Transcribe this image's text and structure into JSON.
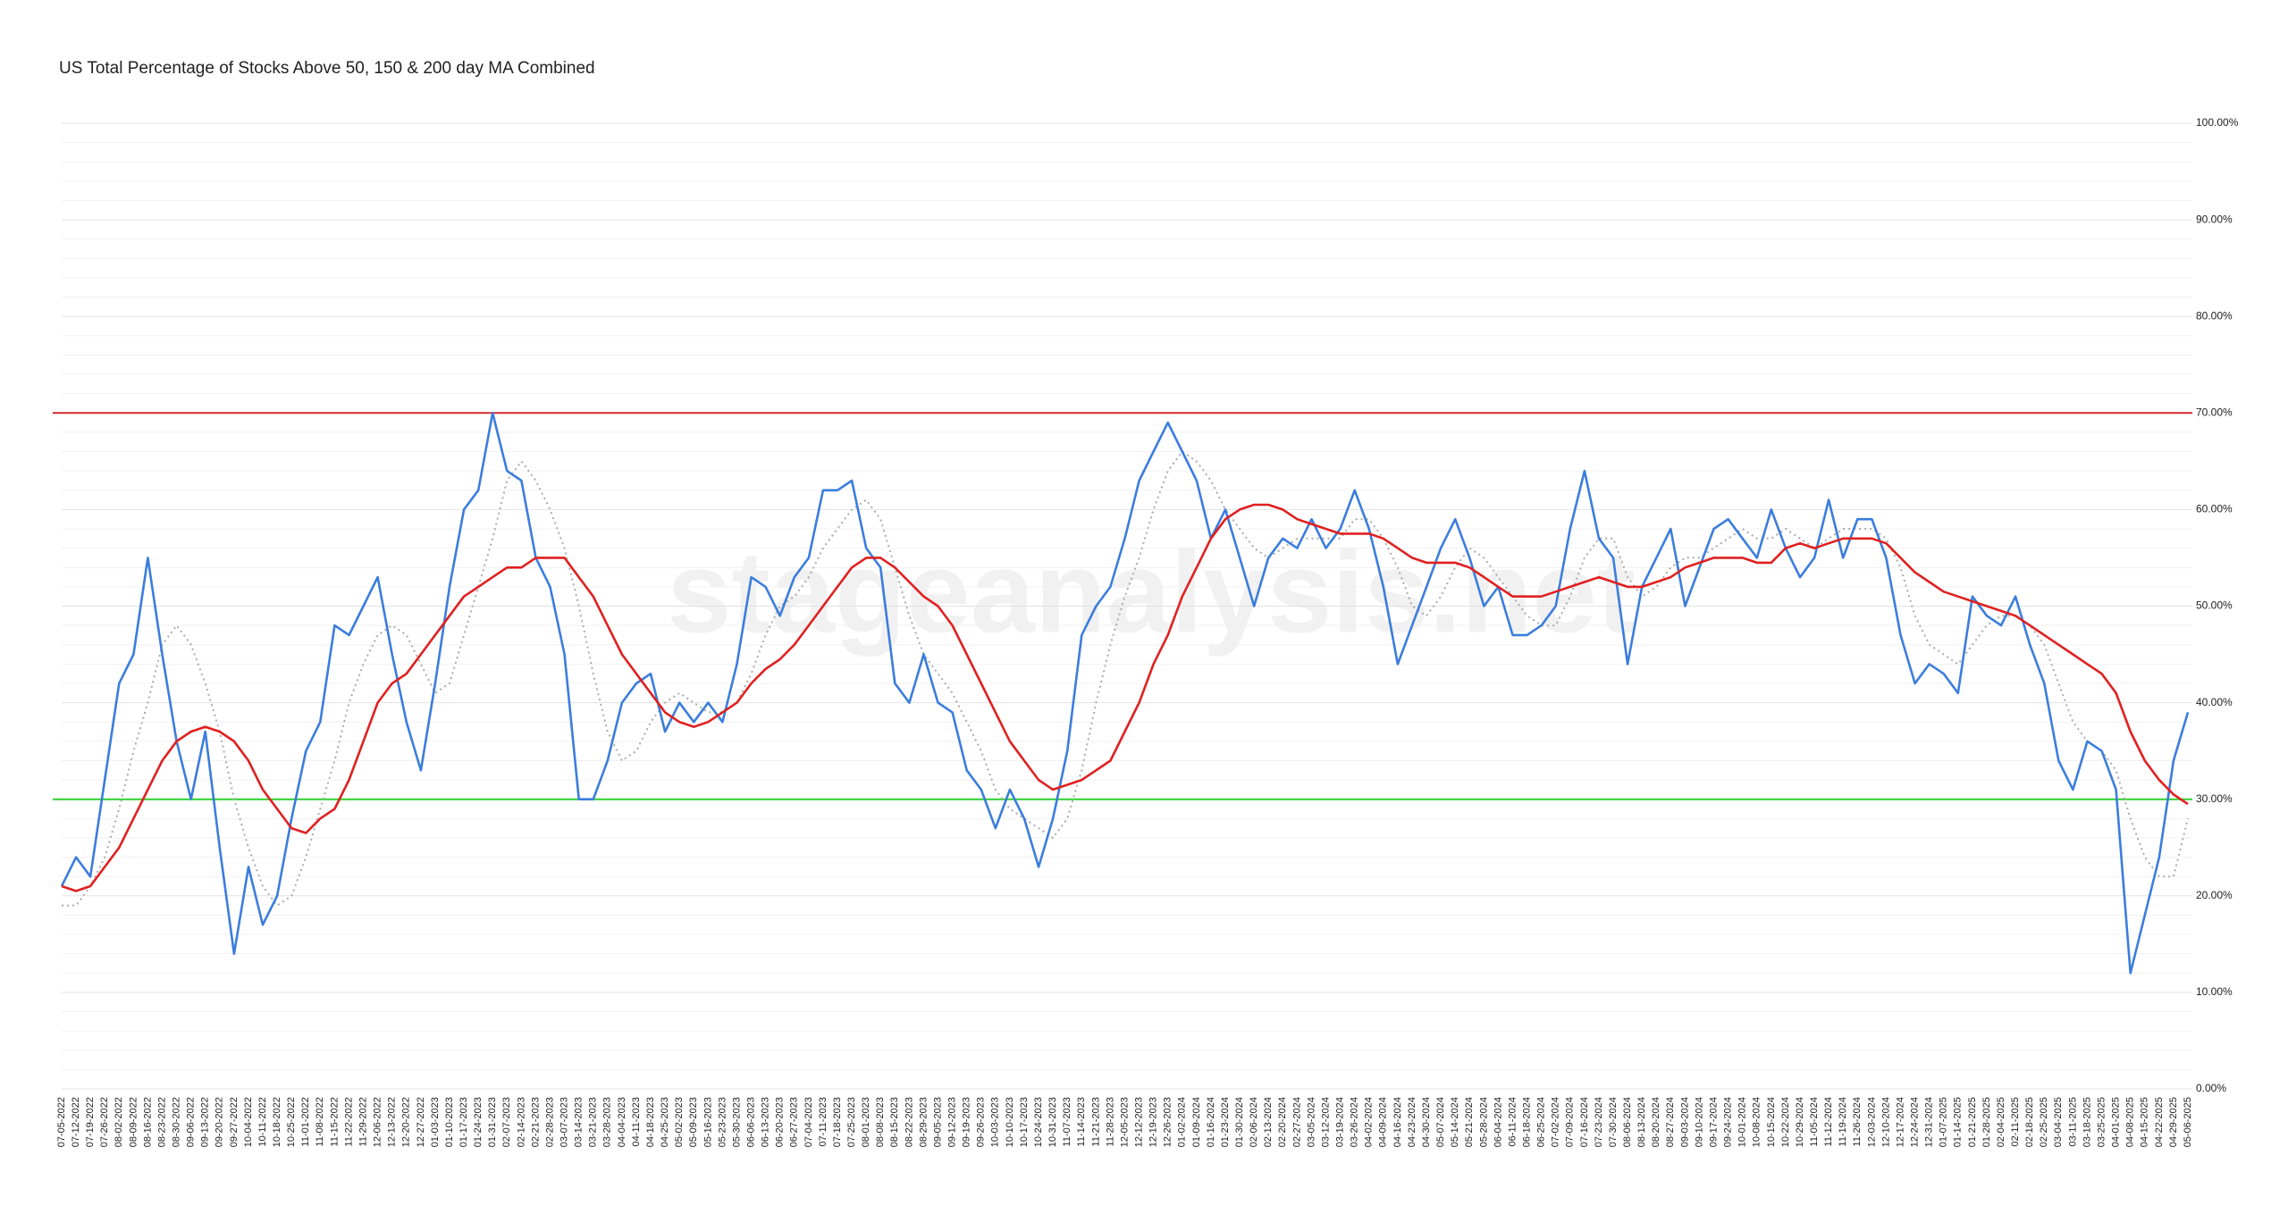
{
  "chart_data": {
    "type": "line",
    "title": "US Total Percentage of Stocks Above 50, 150 & 200 day MA Combined",
    "watermark": "stageanalysis.net",
    "categories": [
      "07-05-2022",
      "07-12-2022",
      "07-19-2022",
      "07-26-2022",
      "08-02-2022",
      "08-09-2022",
      "08-16-2022",
      "08-23-2022",
      "08-30-2022",
      "09-06-2022",
      "09-13-2022",
      "09-20-2022",
      "09-27-2022",
      "10-04-2022",
      "10-11-2022",
      "10-18-2022",
      "10-25-2022",
      "11-01-2022",
      "11-08-2022",
      "11-15-2022",
      "11-22-2022",
      "11-29-2022",
      "12-06-2022",
      "12-13-2022",
      "12-20-2022",
      "12-27-2022",
      "01-03-2023",
      "01-10-2023",
      "01-17-2023",
      "01-24-2023",
      "01-31-2023",
      "02-07-2023",
      "02-14-2023",
      "02-21-2023",
      "02-28-2023",
      "03-07-2023",
      "03-14-2023",
      "03-21-2023",
      "03-28-2023",
      "04-04-2023",
      "04-11-2023",
      "04-18-2023",
      "04-25-2023",
      "05-02-2023",
      "05-09-2023",
      "05-16-2023",
      "05-23-2023",
      "05-30-2023",
      "06-06-2023",
      "06-13-2023",
      "06-20-2023",
      "06-27-2023",
      "07-04-2023",
      "07-11-2023",
      "07-18-2023",
      "07-25-2023",
      "08-01-2023",
      "08-08-2023",
      "08-15-2023",
      "08-22-2023",
      "08-29-2023",
      "09-05-2023",
      "09-12-2023",
      "09-19-2023",
      "09-26-2023",
      "10-03-2023",
      "10-10-2023",
      "10-17-2023",
      "10-24-2023",
      "10-31-2023",
      "11-07-2023",
      "11-14-2023",
      "11-21-2023",
      "11-28-2023",
      "12-05-2023",
      "12-12-2023",
      "12-19-2023",
      "12-26-2023",
      "01-02-2024",
      "01-09-2024",
      "01-16-2024",
      "01-23-2024",
      "01-30-2024",
      "02-06-2024",
      "02-13-2024",
      "02-20-2024",
      "02-27-2024",
      "03-05-2024",
      "03-12-2024",
      "03-19-2024",
      "03-26-2024",
      "04-02-2024",
      "04-09-2024",
      "04-16-2024",
      "04-23-2024",
      "04-30-2024",
      "05-07-2024",
      "05-14-2024",
      "05-21-2024",
      "05-28-2024",
      "06-04-2024",
      "06-11-2024",
      "06-18-2024",
      "06-25-2024",
      "07-02-2024",
      "07-09-2024",
      "07-16-2024",
      "07-23-2024",
      "07-30-2024",
      "08-06-2024",
      "08-13-2024",
      "08-20-2024",
      "08-27-2024",
      "09-03-2024",
      "09-10-2024",
      "09-17-2024",
      "09-24-2024",
      "10-01-2024",
      "10-08-2024",
      "10-15-2024",
      "10-22-2024",
      "10-29-2024",
      "11-05-2024",
      "11-12-2024",
      "11-19-2024",
      "11-26-2024",
      "12-03-2024",
      "12-10-2024",
      "12-17-2024",
      "12-24-2024",
      "12-31-2024",
      "01-07-2025",
      "01-14-2025",
      "01-21-2025",
      "01-28-2025",
      "02-04-2025",
      "02-11-2025",
      "02-18-2025",
      "02-25-2025",
      "03-04-2025",
      "03-11-2025",
      "03-18-2025",
      "03-25-2025",
      "04-01-2025",
      "04-08-2025",
      "04-15-2025",
      "04-22-2025",
      "04-29-2025",
      "05-06-2025"
    ],
    "series": [
      {
        "color": "#aaaaaa",
        "style": "dotted",
        "values": [
          19,
          19,
          21,
          24,
          29,
          35,
          40,
          46,
          48,
          46,
          42,
          37,
          30,
          25,
          21,
          19,
          20,
          24,
          29,
          34,
          40,
          44,
          47,
          48,
          47,
          44,
          41,
          42,
          47,
          52,
          57,
          63,
          65,
          63,
          60,
          56,
          50,
          43,
          37,
          34,
          35,
          38,
          40,
          41,
          40,
          39,
          39,
          40,
          43,
          47,
          50,
          51,
          53,
          56,
          58,
          60,
          61,
          59,
          54,
          49,
          45,
          43,
          41,
          38,
          35,
          31,
          29,
          28,
          27,
          26,
          28,
          33,
          40,
          46,
          51,
          55,
          60,
          64,
          66,
          65,
          63,
          60,
          58,
          56,
          55,
          56,
          57,
          57,
          57,
          57,
          59,
          59,
          57,
          54,
          50,
          49,
          51,
          54,
          56,
          55,
          53,
          51,
          49,
          48,
          48,
          51,
          55,
          57,
          57,
          53,
          51,
          52,
          54,
          55,
          55,
          56,
          57,
          58,
          57,
          57,
          58,
          57,
          56,
          57,
          58,
          58,
          58,
          57,
          54,
          49,
          46,
          45,
          44,
          46,
          48,
          49,
          49,
          48,
          46,
          42,
          38,
          36,
          35,
          33,
          28,
          24,
          22,
          22,
          28
        ]
      },
      {
        "color": "#3b7ddd",
        "style": "solid",
        "values": [
          21,
          24,
          22,
          32,
          42,
          45,
          55,
          45,
          36,
          30,
          37,
          25,
          14,
          23,
          17,
          20,
          28,
          35,
          38,
          48,
          47,
          50,
          53,
          45,
          38,
          33,
          42,
          52,
          60,
          62,
          70,
          64,
          63,
          55,
          52,
          45,
          30,
          30,
          34,
          40,
          42,
          43,
          37,
          40,
          38,
          40,
          38,
          44,
          53,
          52,
          49,
          53,
          55,
          62,
          62,
          63,
          56,
          54,
          42,
          40,
          45,
          40,
          39,
          33,
          31,
          27,
          31,
          28,
          23,
          28,
          35,
          47,
          50,
          52,
          57,
          63,
          66,
          69,
          66,
          63,
          57,
          60,
          55,
          50,
          55,
          57,
          56,
          59,
          56,
          58,
          62,
          58,
          52,
          44,
          48,
          52,
          56,
          59,
          55,
          50,
          52,
          47,
          47,
          48,
          50,
          58,
          64,
          57,
          55,
          44,
          52,
          55,
          58,
          50,
          54,
          58,
          59,
          57,
          55,
          60,
          56,
          53,
          55,
          61,
          55,
          59,
          59,
          55,
          47,
          42,
          44,
          43,
          41,
          51,
          49,
          48,
          51,
          46,
          42,
          34,
          31,
          36,
          35,
          31,
          12,
          18,
          24,
          34,
          39
        ]
      },
      {
        "color": "#e02020",
        "style": "solid",
        "values": [
          21,
          20.5,
          21,
          23,
          25,
          28,
          31,
          34,
          36,
          37,
          37.5,
          37,
          36,
          34,
          31,
          29,
          27,
          26.5,
          28,
          29,
          32,
          36,
          40,
          42,
          43,
          45,
          47,
          49,
          51,
          52,
          53,
          54,
          54,
          55,
          55,
          55,
          53,
          51,
          48,
          45,
          43,
          41,
          39,
          38,
          37.5,
          38,
          39,
          40,
          42,
          43.5,
          44.5,
          46,
          48,
          50,
          52,
          54,
          55,
          55,
          54,
          52.5,
          51,
          50,
          48,
          45,
          42,
          39,
          36,
          34,
          32,
          31,
          31.5,
          32,
          33,
          34,
          37,
          40,
          44,
          47,
          51,
          54,
          57,
          59,
          60,
          60.5,
          60.5,
          60,
          59,
          58.5,
          58,
          57.5,
          57.5,
          57.5,
          57,
          56,
          55,
          54.5,
          54.5,
          54.5,
          54,
          53,
          52,
          51,
          51,
          51,
          51.5,
          52,
          52.5,
          53,
          52.5,
          52,
          52,
          52.5,
          53,
          54,
          54.5,
          55,
          55,
          55,
          54.5,
          54.5,
          56,
          56.5,
          56,
          56.5,
          57,
          57,
          57,
          56.5,
          55,
          53.5,
          52.5,
          51.5,
          51,
          50.5,
          50,
          49.5,
          49,
          48,
          47,
          46,
          45,
          44,
          43,
          41,
          37,
          34,
          32,
          30.5,
          29.5
        ]
      }
    ],
    "reference_lines": [
      {
        "value": 70,
        "color": "#d42a2a"
      },
      {
        "value": 30,
        "color": "#2ed12e"
      }
    ],
    "ylim": [
      0,
      100
    ],
    "yticks": [
      {
        "value": 0,
        "label": "0.00%"
      },
      {
        "value": 10,
        "label": "10.00%"
      },
      {
        "value": 20,
        "label": "20.00%"
      },
      {
        "value": 30,
        "label": "30.00%"
      },
      {
        "value": 40,
        "label": "40.00%"
      },
      {
        "value": 50,
        "label": "50.00%"
      },
      {
        "value": 60,
        "label": "60.00%"
      },
      {
        "value": 70,
        "label": "70.00%"
      },
      {
        "value": 80,
        "label": "80.00%"
      },
      {
        "value": 90,
        "label": "90.00%"
      },
      {
        "value": 100,
        "label": "100.00%"
      }
    ],
    "minor_yticks": [
      2,
      4,
      6,
      8,
      12,
      14,
      16,
      18,
      22,
      24,
      26,
      28,
      32,
      34,
      36,
      38,
      42,
      44,
      46,
      48,
      52,
      54,
      56,
      58,
      62,
      64,
      66,
      68,
      72,
      74,
      76,
      78,
      82,
      84,
      86,
      88,
      92,
      94,
      96,
      98
    ],
    "grid": true
  }
}
